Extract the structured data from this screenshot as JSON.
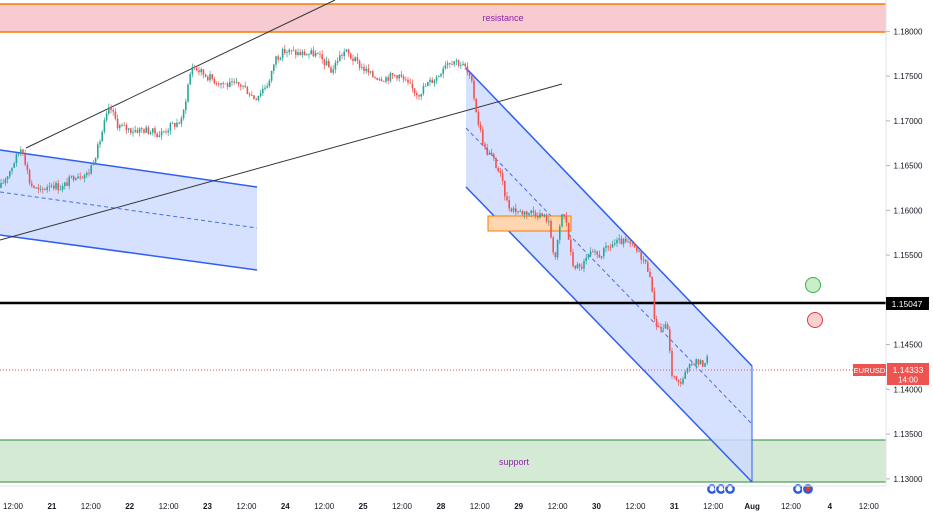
{
  "chart_data": {
    "type": "candlestick",
    "symbol": "EURUSD",
    "last_price": "1.14333",
    "countdown": "14:00",
    "marked_level": "1.15047",
    "y_ticks": [
      "1.18000",
      "1.17500",
      "1.17000",
      "1.16500",
      "1.16000",
      "1.15500",
      "1.15000",
      "1.14500",
      "1.14000",
      "1.13500",
      "1.13000"
    ],
    "ylim": [
      1.1292,
      1.1835
    ],
    "x_ticks": [
      "12:00",
      "21",
      "12:00",
      "22",
      "12:00",
      "23",
      "12:00",
      "24",
      "12:00",
      "25",
      "12:00",
      "28",
      "12:00",
      "29",
      "12:00",
      "30",
      "12:00",
      "31",
      "12:00",
      "Aug",
      "12:00",
      "4",
      "12:00"
    ],
    "zones": [
      {
        "label": "resistance",
        "from": 1.18,
        "to": 1.183,
        "color": "#f7cbcf",
        "border": "#f57c00"
      },
      {
        "label": "support",
        "from": 1.131,
        "to": 1.1356,
        "color": "#d4ead4",
        "border": "#2e8b36"
      }
    ],
    "colors": {
      "up": "#26a69a",
      "down": "#ef5350",
      "channel_fill": "#cfdbff",
      "channel_line": "#2f5ef5"
    },
    "markers": [
      {
        "kind": "circle",
        "color": "green",
        "price": 1.1525
      },
      {
        "kind": "circle",
        "color": "red",
        "price": 1.1487
      }
    ],
    "candle_path": [
      [
        0,
        1.1625
      ],
      [
        10,
        1.1645
      ],
      [
        22,
        1.1672
      ],
      [
        30,
        1.163
      ],
      [
        40,
        1.162
      ],
      [
        50,
        1.163
      ],
      [
        62,
        1.1625
      ],
      [
        75,
        1.164
      ],
      [
        88,
        1.164
      ],
      [
        98,
        1.167
      ],
      [
        105,
        1.17
      ],
      [
        110,
        1.1715
      ],
      [
        118,
        1.1695
      ],
      [
        130,
        1.169
      ],
      [
        145,
        1.169
      ],
      [
        160,
        1.1685
      ],
      [
        172,
        1.1695
      ],
      [
        182,
        1.17
      ],
      [
        188,
        1.174
      ],
      [
        192,
        1.1762
      ],
      [
        200,
        1.1755
      ],
      [
        215,
        1.1745
      ],
      [
        228,
        1.174
      ],
      [
        242,
        1.174
      ],
      [
        255,
        1.1725
      ],
      [
        262,
        1.1735
      ],
      [
        270,
        1.1745
      ],
      [
        275,
        1.177
      ],
      [
        285,
        1.1778
      ],
      [
        300,
        1.1775
      ],
      [
        315,
        1.1775
      ],
      [
        325,
        1.1765
      ],
      [
        332,
        1.1755
      ],
      [
        338,
        1.177
      ],
      [
        345,
        1.1778
      ],
      [
        352,
        1.177
      ],
      [
        362,
        1.176
      ],
      [
        372,
        1.175
      ],
      [
        385,
        1.1748
      ],
      [
        398,
        1.1752
      ],
      [
        408,
        1.174
      ],
      [
        418,
        1.173
      ],
      [
        428,
        1.1742
      ],
      [
        438,
        1.175
      ],
      [
        445,
        1.1765
      ],
      [
        455,
        1.1768
      ],
      [
        465,
        1.176
      ],
      [
        472,
        1.174
      ],
      [
        478,
        1.17
      ],
      [
        485,
        1.1668
      ],
      [
        492,
        1.166
      ],
      [
        500,
        1.164
      ],
      [
        508,
        1.1605
      ],
      [
        520,
        1.1598
      ],
      [
        535,
        1.1598
      ],
      [
        548,
        1.159
      ],
      [
        555,
        1.1545
      ],
      [
        562,
        1.1595
      ],
      [
        566,
        1.159
      ],
      [
        572,
        1.154
      ],
      [
        580,
        1.1535
      ],
      [
        590,
        1.155
      ],
      [
        600,
        1.155
      ],
      [
        612,
        1.1562
      ],
      [
        622,
        1.1565
      ],
      [
        632,
        1.156
      ],
      [
        642,
        1.1548
      ],
      [
        650,
        1.153
      ],
      [
        655,
        1.1475
      ],
      [
        660,
        1.1468
      ],
      [
        668,
        1.147
      ],
      [
        671,
        1.142
      ],
      [
        678,
        1.1405
      ],
      [
        686,
        1.1418
      ],
      [
        694,
        1.1432
      ],
      [
        702,
        1.1428
      ],
      [
        708,
        1.1435
      ]
    ],
    "event_icons": [
      712,
      721,
      730,
      798,
      808
    ]
  }
}
